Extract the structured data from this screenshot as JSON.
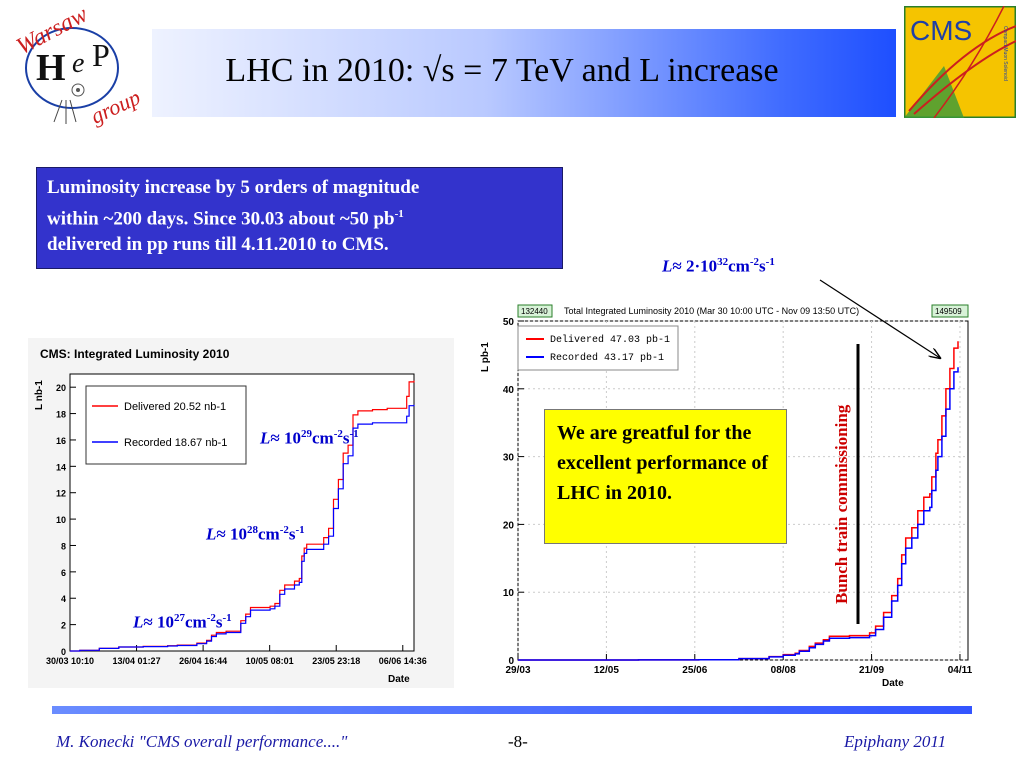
{
  "slide": {
    "title": "LHC in 2010: √s = 7 TeV and  L increase",
    "logo_left": {
      "line1": "Warsaw",
      "letters": "HeP",
      "line2": "group"
    },
    "logo_right": {
      "text": "CMS",
      "subtitle": "Compact Muon Solenoid"
    },
    "info_box": {
      "line1": "Luminosity increase by 5 orders of magnitude",
      "line2a": "within ~200 days. Since 30.03 about ~50 pb",
      "line2sup": "-1",
      "line3": "delivered  in pp runs till 4.11.2010 to CMS."
    },
    "annotations": {
      "lum27": {
        "pre": "≈ 10",
        "exp": "27",
        "unit1": "cm",
        "unit1exp": "-2",
        "unit2": "s",
        "unit2exp": "-1"
      },
      "lum28": {
        "pre": "≈ 10",
        "exp": "28",
        "unit1": "cm",
        "unit1exp": "-2",
        "unit2": "s",
        "unit2exp": "-1"
      },
      "lum29": {
        "pre": "≈ 10",
        "exp": "29",
        "unit1": "cm",
        "unit1exp": "-2",
        "unit2": "s",
        "unit2exp": "-1"
      },
      "lum32": {
        "pre": "≈ 2·10",
        "exp": "32",
        "unit1": "cm",
        "unit1exp": "-2",
        "unit2": "s",
        "unit2exp": "-1"
      },
      "lum_symbol": "L"
    },
    "thanks_box": "We are greatful for the excellent performance of LHC in 2010.",
    "bunch_label": "Bunch train commissioning",
    "footer": {
      "left": "M. Konecki   \"CMS overall performance....\"",
      "center": "-8-",
      "right": "Epiphany 2011"
    }
  },
  "colors": {
    "delivered": "#ff0000",
    "recorded": "#0000ff",
    "info_box": "#3333cc",
    "thanks_box": "#ffff00",
    "footer_text": "#1a1aa6"
  },
  "chart_data": [
    {
      "type": "line",
      "title": "CMS: Integrated Luminosity 2010",
      "xlabel": "Date",
      "ylabel": "L nb-1",
      "ylim": [
        0,
        21
      ],
      "yticks": [
        0,
        2,
        4,
        6,
        8,
        10,
        12,
        14,
        16,
        18,
        20
      ],
      "xtick_labels": [
        "30/03 10:10",
        "13/04 01:27",
        "26/04 16:44",
        "10/05 08:01",
        "23/05 23:18",
        "06/06 14:36"
      ],
      "x_unit": "days since first tick (ticks every 13.64 days)",
      "xlim": [
        0,
        70.5
      ],
      "legend": "top-left",
      "series": [
        {
          "name": "Delivered 20.52 nb-1",
          "color": "#ff0000",
          "points": [
            [
              0,
              0
            ],
            [
              2,
              0.05
            ],
            [
              6,
              0.2
            ],
            [
              10,
              0.3
            ],
            [
              14,
              0.3
            ],
            [
              15,
              0.35
            ],
            [
              20,
              0.4
            ],
            [
              22,
              0.45
            ],
            [
              26,
              0.6
            ],
            [
              28,
              0.8
            ],
            [
              29,
              1.2
            ],
            [
              30,
              1.4
            ],
            [
              32,
              1.5
            ],
            [
              35,
              2.3
            ],
            [
              36,
              2.8
            ],
            [
              37,
              3.3
            ],
            [
              41,
              3.4
            ],
            [
              42,
              3.6
            ],
            [
              43,
              4.6
            ],
            [
              44,
              5.0
            ],
            [
              46,
              5.3
            ],
            [
              47,
              5.5
            ],
            [
              47.5,
              7.2
            ],
            [
              48,
              7.8
            ],
            [
              48.5,
              8.1
            ],
            [
              52,
              8.6
            ],
            [
              53,
              9.3
            ],
            [
              54,
              11.5
            ],
            [
              55,
              13.0
            ],
            [
              56,
              15.0
            ],
            [
              57,
              15.6
            ],
            [
              58,
              17.9
            ],
            [
              59,
              18.2
            ],
            [
              62,
              18.3
            ],
            [
              65,
              18.4
            ],
            [
              68,
              18.4
            ],
            [
              69,
              19.3
            ],
            [
              69.5,
              20.4
            ],
            [
              70.5,
              20.5
            ]
          ]
        },
        {
          "name": "Recorded 18.67 nb-1",
          "color": "#0000ff",
          "points": [
            [
              0,
              0
            ],
            [
              2,
              0.05
            ],
            [
              6,
              0.2
            ],
            [
              10,
              0.3
            ],
            [
              14,
              0.3
            ],
            [
              15,
              0.33
            ],
            [
              20,
              0.38
            ],
            [
              22,
              0.42
            ],
            [
              26,
              0.55
            ],
            [
              28,
              0.75
            ],
            [
              29,
              1.1
            ],
            [
              30,
              1.3
            ],
            [
              32,
              1.4
            ],
            [
              35,
              2.1
            ],
            [
              36,
              2.6
            ],
            [
              37,
              3.1
            ],
            [
              41,
              3.2
            ],
            [
              42,
              3.4
            ],
            [
              43,
              4.3
            ],
            [
              44,
              4.7
            ],
            [
              46,
              5.0
            ],
            [
              47,
              5.2
            ],
            [
              47.5,
              6.8
            ],
            [
              48,
              7.4
            ],
            [
              48.5,
              7.7
            ],
            [
              52,
              8.1
            ],
            [
              53,
              8.7
            ],
            [
              54,
              10.8
            ],
            [
              55,
              12.3
            ],
            [
              56,
              14.2
            ],
            [
              57,
              14.8
            ],
            [
              58,
              16.9
            ],
            [
              59,
              17.2
            ],
            [
              62,
              17.3
            ],
            [
              65,
              17.3
            ],
            [
              68,
              17.3
            ],
            [
              69,
              17.8
            ],
            [
              69.5,
              18.6
            ],
            [
              70.5,
              18.67
            ]
          ]
        }
      ]
    },
    {
      "type": "line",
      "title": "Total Integrated Luminosity 2010 (Mar 30 10:00 UTC - Nov 09 13:50 UTC)",
      "run_labels": [
        "132440",
        "149509"
      ],
      "xlabel": "Date",
      "ylabel": "L pb-1",
      "ylim": [
        0,
        50
      ],
      "yticks": [
        0,
        10,
        20,
        30,
        40,
        50
      ],
      "xtick_labels": [
        "29/03",
        "12/05",
        "25/06",
        "08/08",
        "21/09",
        "04/11"
      ],
      "x_unit": "days since 29/03",
      "xlim": [
        0,
        224
      ],
      "legend": "top-left",
      "series": [
        {
          "name": "Delivered 47.03 pb-1",
          "color": "#ff0000",
          "points": [
            [
              0,
              0
            ],
            [
              60,
              0.02
            ],
            [
              90,
              0.05
            ],
            [
              110,
              0.2
            ],
            [
              125,
              0.5
            ],
            [
              132,
              0.8
            ],
            [
              138,
              1.0
            ],
            [
              140,
              1.4
            ],
            [
              145,
              2.0
            ],
            [
              148,
              2.5
            ],
            [
              152,
              3.0
            ],
            [
              155,
              3.5
            ],
            [
              165,
              3.6
            ],
            [
              172,
              3.6
            ],
            [
              175,
              4.0
            ],
            [
              178,
              5.0
            ],
            [
              182,
              7.0
            ],
            [
              186,
              9.5
            ],
            [
              189,
              12.0
            ],
            [
              191,
              15.5
            ],
            [
              193,
              18.0
            ],
            [
              196,
              19.5
            ],
            [
              199,
              22.0
            ],
            [
              202,
              24.0
            ],
            [
              205,
              24.5
            ],
            [
              206,
              27.0
            ],
            [
              208,
              30.5
            ],
            [
              209,
              32.5
            ],
            [
              211,
              36.0
            ],
            [
              213,
              40.0
            ],
            [
              215,
              43.0
            ],
            [
              217,
              46.0
            ],
            [
              219,
              47.0
            ]
          ]
        },
        {
          "name": "Recorded 43.17 pb-1",
          "color": "#0000ff",
          "points": [
            [
              0,
              0
            ],
            [
              60,
              0.02
            ],
            [
              90,
              0.05
            ],
            [
              110,
              0.2
            ],
            [
              125,
              0.45
            ],
            [
              132,
              0.7
            ],
            [
              138,
              0.9
            ],
            [
              140,
              1.3
            ],
            [
              145,
              1.8
            ],
            [
              148,
              2.3
            ],
            [
              152,
              2.8
            ],
            [
              155,
              3.2
            ],
            [
              165,
              3.3
            ],
            [
              172,
              3.3
            ],
            [
              175,
              3.6
            ],
            [
              178,
              4.5
            ],
            [
              182,
              6.3
            ],
            [
              186,
              8.7
            ],
            [
              189,
              11.0
            ],
            [
              191,
              14.2
            ],
            [
              193,
              16.5
            ],
            [
              196,
              18.0
            ],
            [
              199,
              20.0
            ],
            [
              202,
              22.0
            ],
            [
              205,
              22.5
            ],
            [
              206,
              25.0
            ],
            [
              208,
              28.0
            ],
            [
              209,
              30.0
            ],
            [
              211,
              33.0
            ],
            [
              213,
              37.0
            ],
            [
              215,
              40.0
            ],
            [
              217,
              42.5
            ],
            [
              219,
              43.17
            ]
          ]
        }
      ]
    }
  ]
}
